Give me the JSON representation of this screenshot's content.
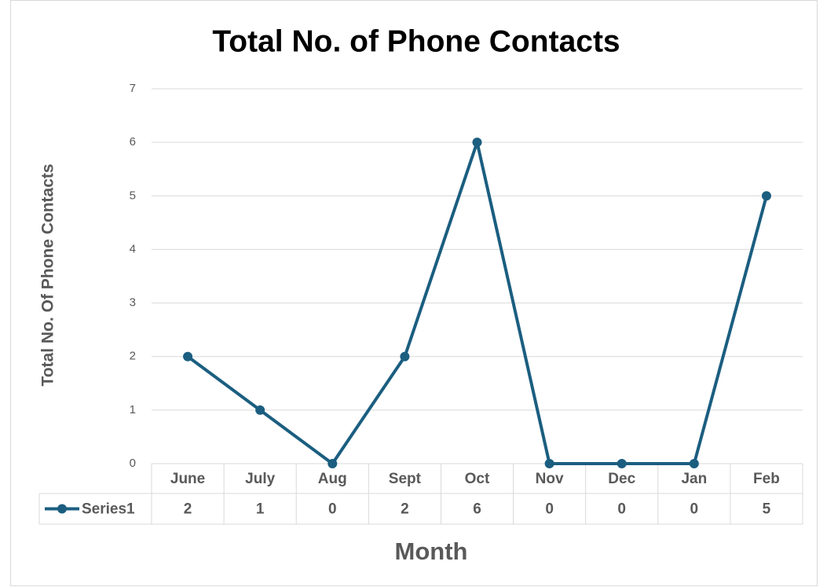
{
  "chart_data": {
    "type": "line",
    "title": "Total No. of Phone Contacts",
    "x_label": "Month",
    "y_label": "Total No. Of Phone Contacts",
    "categories": [
      "June",
      "July",
      "Aug",
      "Sept",
      "Oct",
      "Nov",
      "Dec",
      "Jan",
      "Feb"
    ],
    "series": [
      {
        "name": "Series1",
        "color": "#1b5e80",
        "values": [
          2,
          1,
          0,
          2,
          6,
          0,
          0,
          0,
          5
        ]
      }
    ],
    "ylim": [
      0,
      7
    ],
    "yticks": [
      0,
      1,
      2,
      3,
      4,
      5,
      6,
      7
    ],
    "grid": true,
    "data_table": true
  }
}
